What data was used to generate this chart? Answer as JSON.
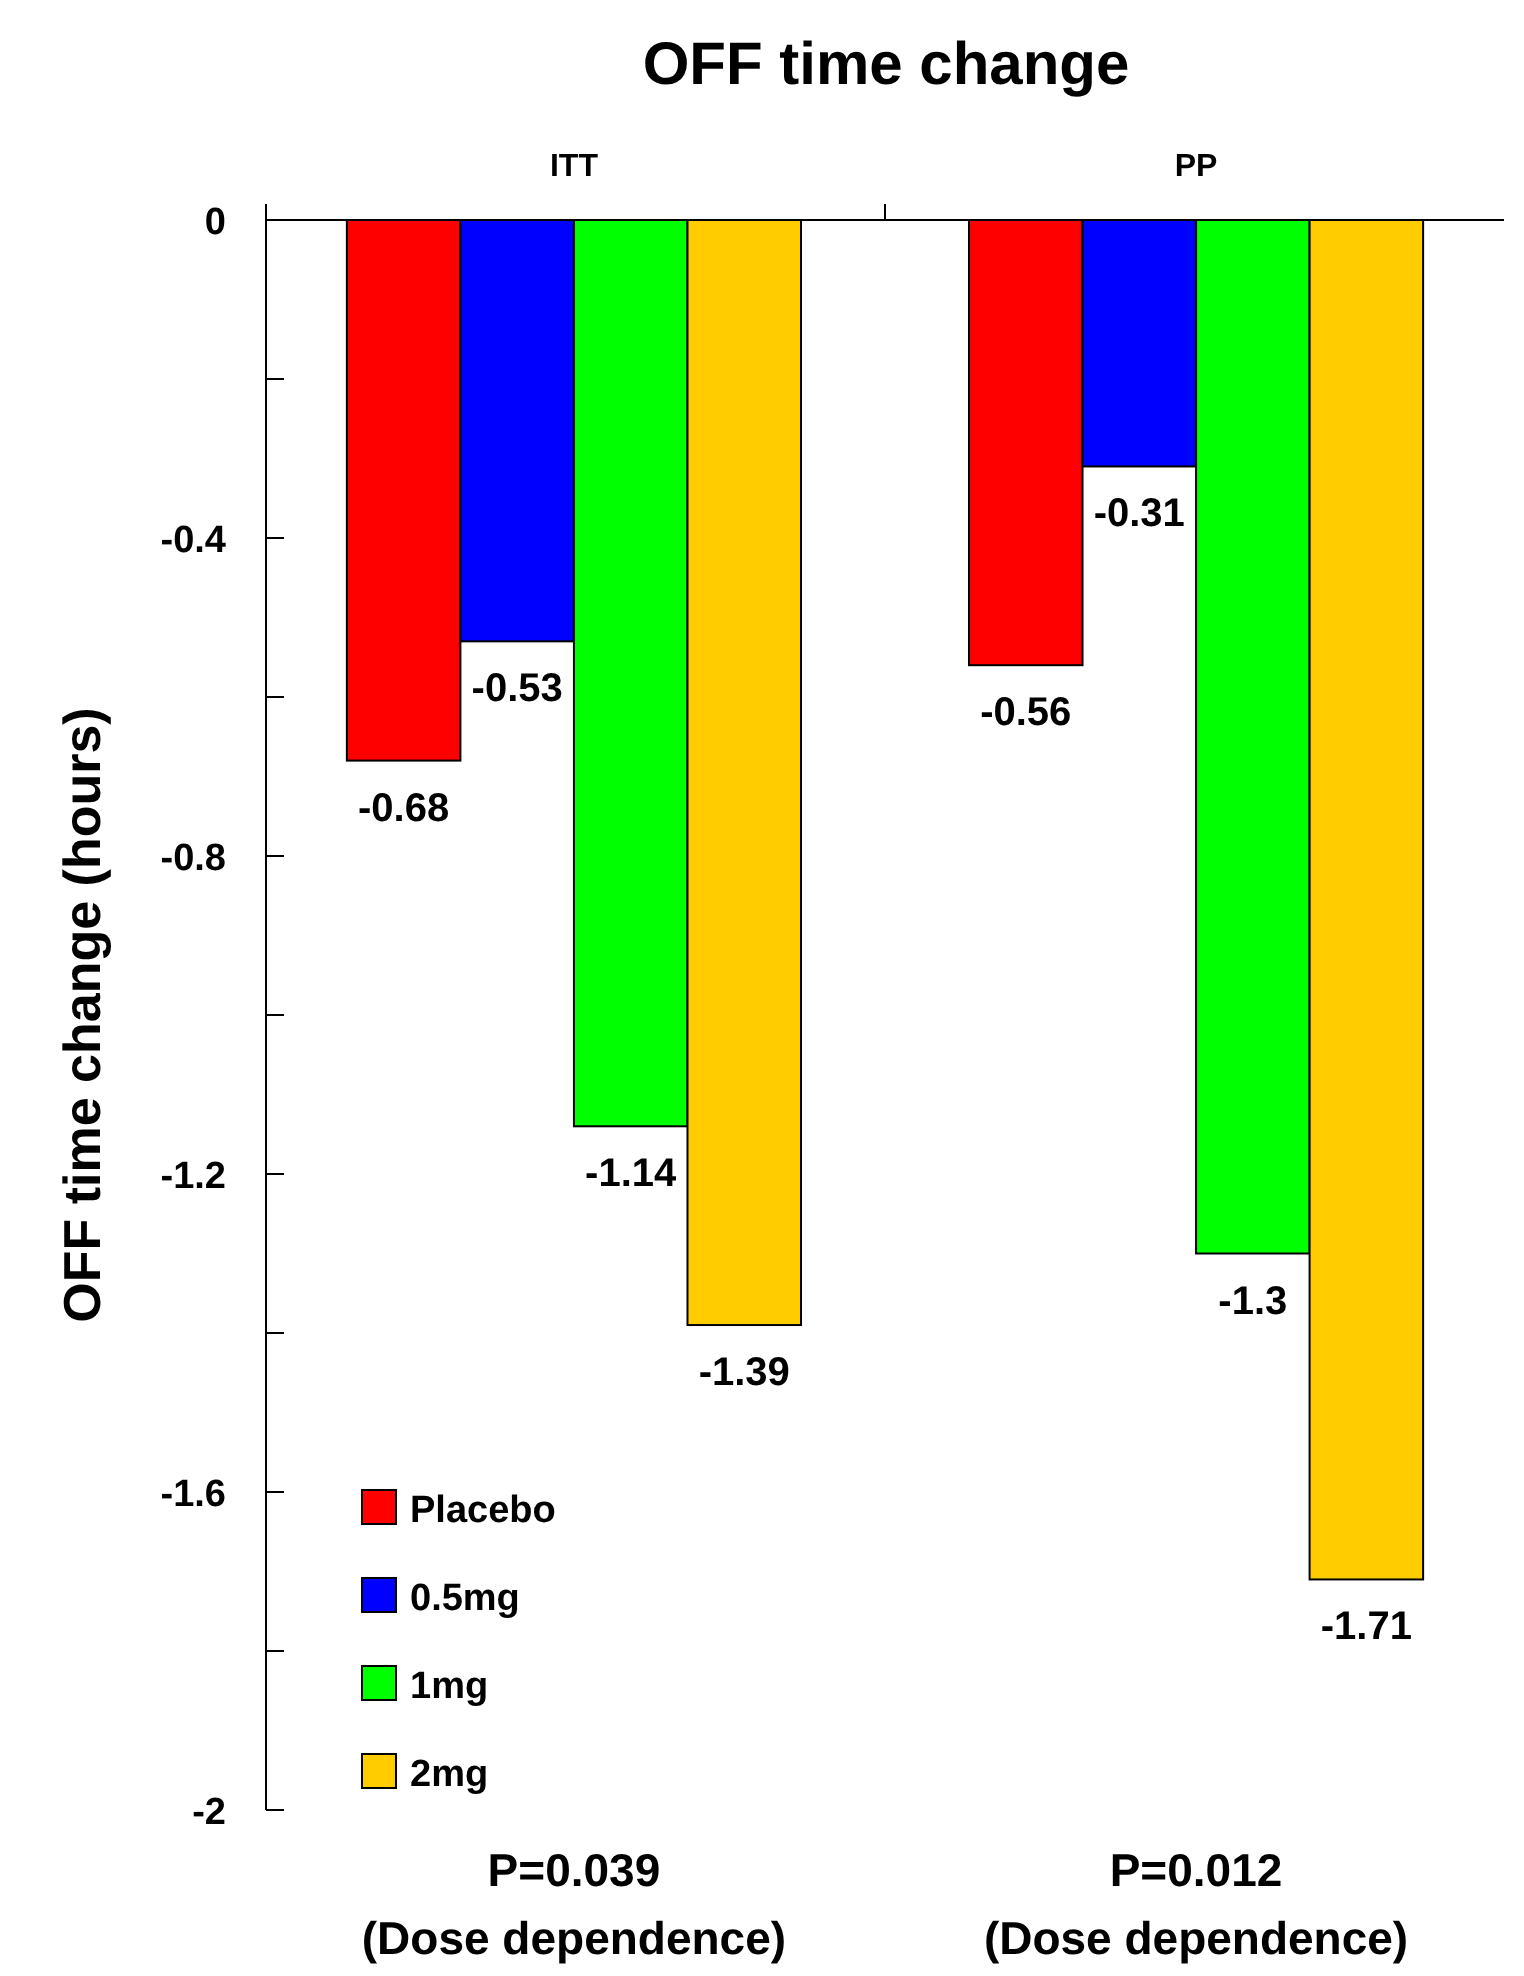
{
  "chart_data": {
    "type": "bar",
    "title": "OFF time change",
    "ylabel": "OFF time change (hours)",
    "categories": [
      "ITT",
      "PP"
    ],
    "series": [
      {
        "name": "Placebo",
        "color": "#ff0000",
        "values": [
          -0.68,
          -0.56
        ]
      },
      {
        "name": "0.5mg",
        "color": "#0000ff",
        "values": [
          -0.53,
          -0.31
        ]
      },
      {
        "name": "1mg",
        "color": "#00ff00",
        "values": [
          -1.14,
          -1.3
        ]
      },
      {
        "name": "2mg",
        "color": "#ffcc00",
        "values": [
          -1.39,
          -1.71
        ]
      }
    ],
    "ylim": [
      -2,
      0
    ],
    "yticks": [
      0,
      {
        "value": -0.2,
        "label": null
      },
      -0.4,
      {
        "value": -0.6,
        "label": null
      },
      -0.8,
      {
        "value": -1.0,
        "label": null
      },
      -1.2,
      {
        "value": -1.4,
        "label": null
      },
      -1.6,
      {
        "value": -1.8,
        "label": null
      },
      -2
    ],
    "data_labels": true,
    "legend": "bottom left",
    "grid": false,
    "annotations": [
      "P=0.039\n(Dose dependence)",
      "P=0.012\n(Dose dependence)"
    ]
  }
}
